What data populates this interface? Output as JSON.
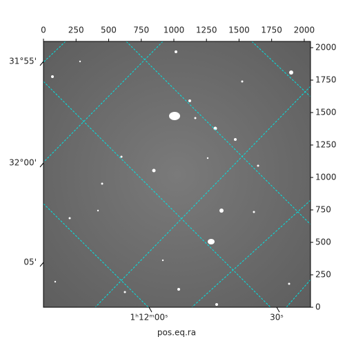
{
  "chart_data": {
    "type": "image",
    "xlabel": "pos.eq.ra",
    "xlim": [
      0,
      2048
    ],
    "xticks": [
      0,
      250,
      500,
      750,
      1000,
      1250,
      1500,
      1750,
      2000
    ],
    "ylim": [
      0,
      2048
    ],
    "yticks": [
      0,
      250,
      500,
      750,
      1000,
      1250,
      1500,
      1750,
      2000
    ],
    "ra_ticks": [
      "1ʰ12ᵐ00ˢ",
      "30ˢ"
    ],
    "dec_ticks": [
      "31°55'",
      "32°00'",
      "05'"
    ],
    "grid_color": "#00e5e5"
  }
}
